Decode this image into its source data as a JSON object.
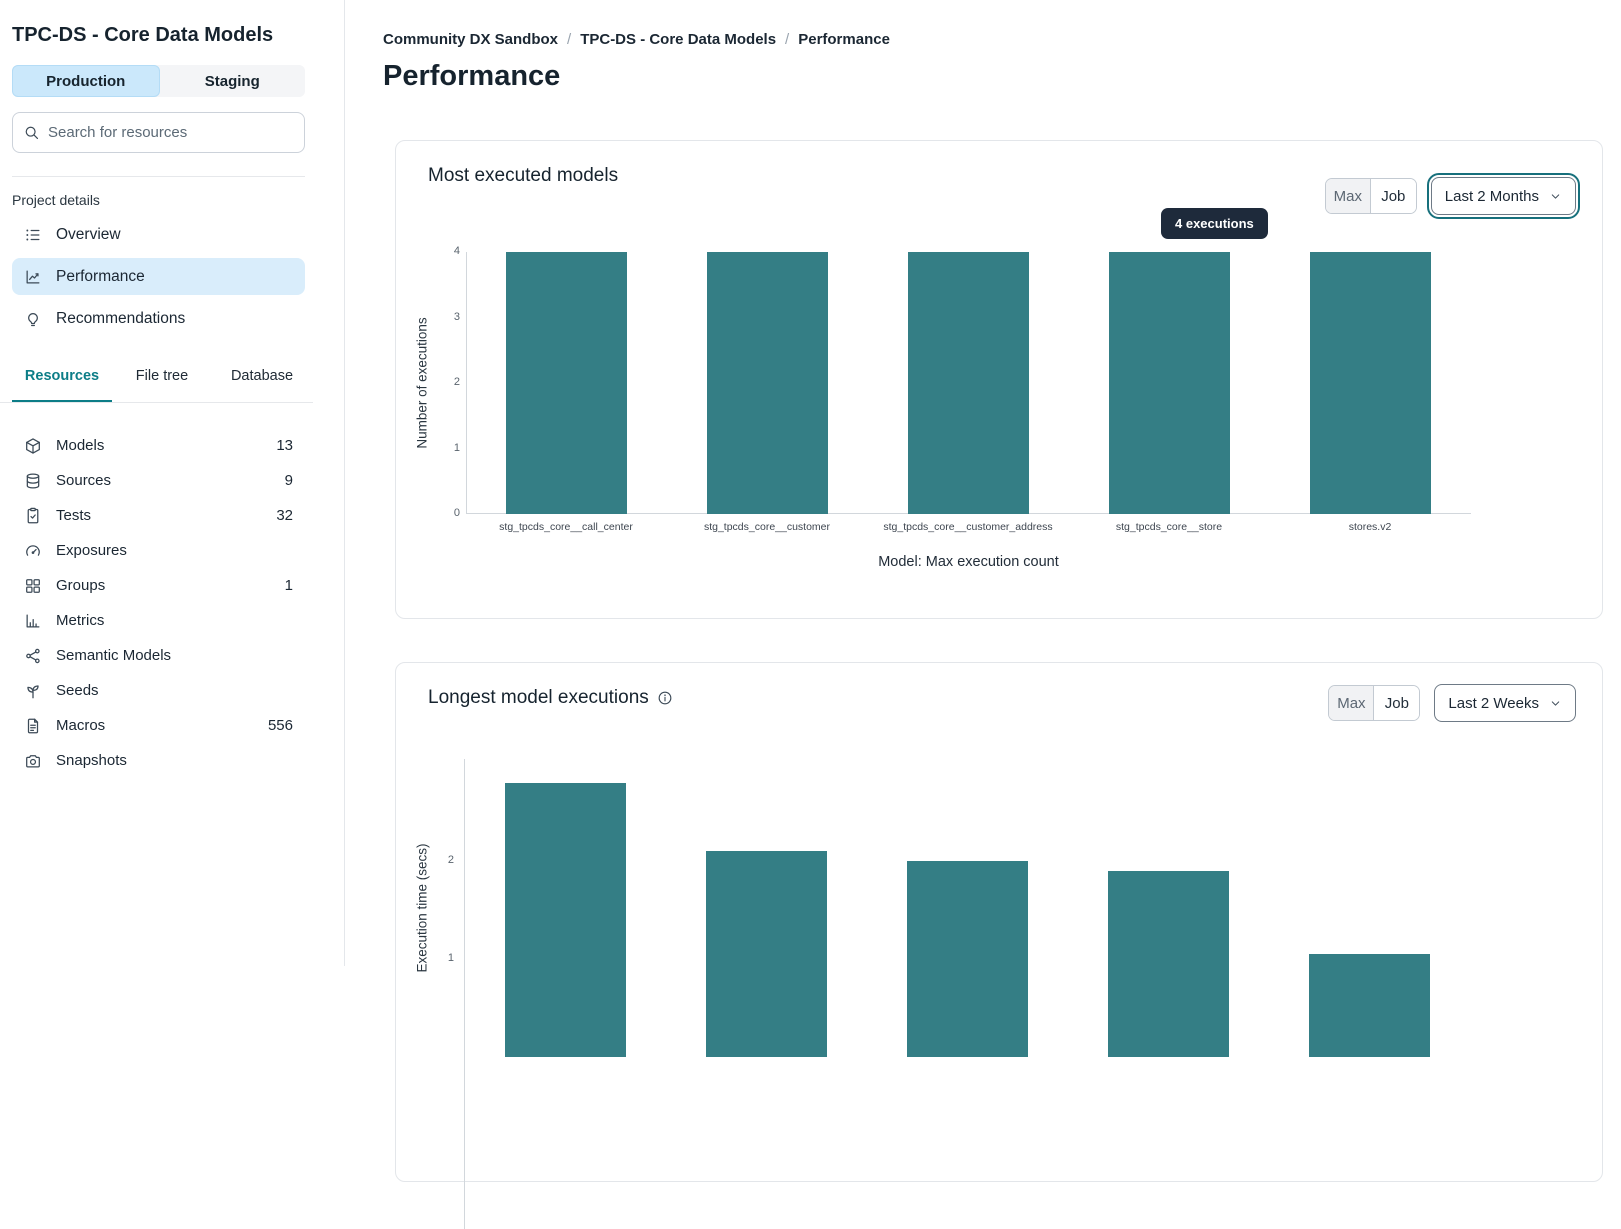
{
  "sidebar": {
    "title": "TPC-DS - Core Data Models",
    "env_tabs": [
      {
        "label": "Production",
        "active": true
      },
      {
        "label": "Staging",
        "active": false
      }
    ],
    "search_placeholder": "Search for resources",
    "section_label": "Project details",
    "nav": [
      {
        "label": "Overview",
        "icon": "list-icon"
      },
      {
        "label": "Performance",
        "icon": "line-chart-icon",
        "active": true
      },
      {
        "label": "Recommendations",
        "icon": "lightbulb-icon"
      }
    ],
    "tabs": [
      {
        "label": "Resources",
        "active": true
      },
      {
        "label": "File tree",
        "active": false
      },
      {
        "label": "Database",
        "active": false
      }
    ],
    "resources": [
      {
        "label": "Models",
        "icon": "cube-icon",
        "count": "13"
      },
      {
        "label": "Sources",
        "icon": "database-icon",
        "count": "9"
      },
      {
        "label": "Tests",
        "icon": "clipboard-icon",
        "count": "32"
      },
      {
        "label": "Exposures",
        "icon": "gauge-icon",
        "count": ""
      },
      {
        "label": "Groups",
        "icon": "grid-icon",
        "count": "1"
      },
      {
        "label": "Metrics",
        "icon": "bar-chart-icon",
        "count": ""
      },
      {
        "label": "Semantic Models",
        "icon": "network-icon",
        "count": ""
      },
      {
        "label": "Seeds",
        "icon": "sprout-icon",
        "count": ""
      },
      {
        "label": "Macros",
        "icon": "file-icon",
        "count": "556"
      },
      {
        "label": "Snapshots",
        "icon": "camera-icon",
        "count": ""
      }
    ]
  },
  "breadcrumb": [
    "Community DX Sandbox",
    "TPC-DS - Core Data Models",
    "Performance"
  ],
  "page_title": "Performance",
  "cards": [
    {
      "title": "Most executed models",
      "buttons": [
        "Max",
        "Job"
      ],
      "dropdown": "Last 2 Months",
      "tooltip": "4 executions"
    },
    {
      "title": "Longest model executions",
      "buttons": [
        "Max",
        "Job"
      ],
      "dropdown": "Last 2 Weeks"
    }
  ],
  "colors": {
    "bar_teal": "#347e85",
    "active_nav_bg": "#d9edfb",
    "env_active_bg": "#cbe8fb",
    "tab_active_teal": "#0c7d87",
    "tooltip_bg": "#1e2a3b",
    "dropdown_focus_ring": "#17707c"
  },
  "chart_data": [
    {
      "type": "bar",
      "title": "Most executed models",
      "categories": [
        "stg_tpcds_core__call_center",
        "stg_tpcds_core__customer",
        "stg_tpcds_core__customer_address",
        "stg_tpcds_core__store",
        "stores.v2"
      ],
      "values": [
        4,
        4,
        4,
        4,
        4
      ],
      "xlabel": "Model: Max execution count",
      "ylabel": "Number of executions",
      "ylim": [
        0,
        4
      ],
      "yticks": [
        0,
        1,
        2,
        3,
        4
      ],
      "grid": false,
      "legend": "none",
      "bar_color": "#347e85",
      "hover_tooltip": "4 executions"
    },
    {
      "type": "bar",
      "title": "Longest model executions",
      "categories": [
        "",
        "",
        "",
        "",
        ""
      ],
      "values": [
        2.8,
        2.1,
        2.0,
        1.9,
        1.05
      ],
      "xlabel": "",
      "ylabel": "Execution time (secs)",
      "ylim": [
        0,
        3
      ],
      "yticks": [
        1,
        2
      ],
      "grid": false,
      "legend": "none",
      "bar_color": "#347e85",
      "layout_note": "chart cropped by viewport bottom; x-axis labels not visible"
    }
  ]
}
